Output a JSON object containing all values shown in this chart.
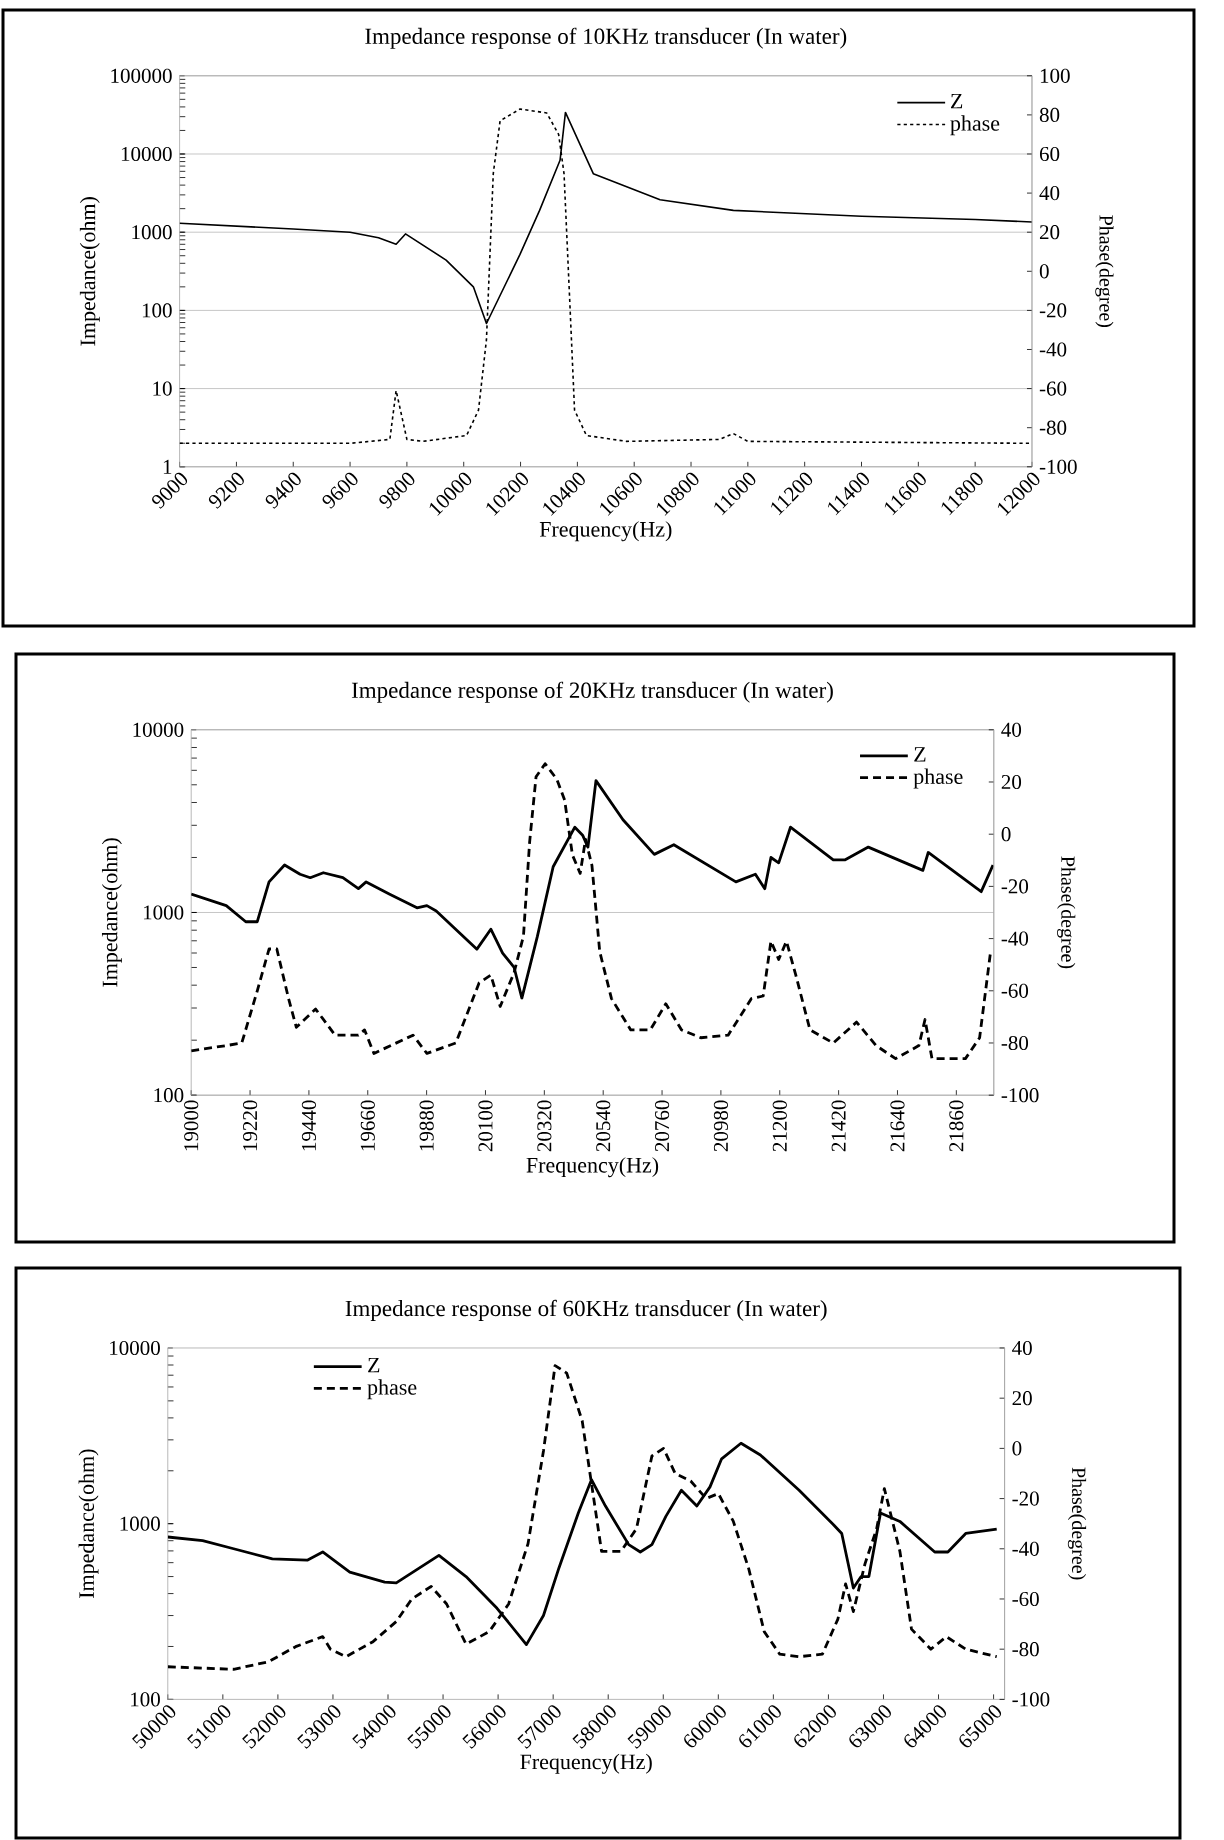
{
  "chart_data": [
    {
      "type": "line",
      "title": "Impedance response of 10KHz transducer (In water)",
      "xlabel": "Frequency(Hz)",
      "ylabel": "Impedance(ohm)",
      "y2label": "Phase(degree)",
      "xlim": [
        9000,
        12000
      ],
      "xticks": [
        9000,
        9200,
        9400,
        9600,
        9800,
        10000,
        10200,
        10400,
        10600,
        10800,
        11000,
        11200,
        11400,
        11600,
        11800,
        12000
      ],
      "ylim": [
        1,
        100000
      ],
      "yticks": [
        1,
        10,
        100,
        1000,
        10000,
        100000
      ],
      "log": "y",
      "y2lim": [
        -100,
        100
      ],
      "y2ticks": [
        -100,
        -80,
        -60,
        -40,
        -20,
        0,
        20,
        40,
        60,
        80,
        100
      ],
      "grid": "y",
      "legend": "top right",
      "series": [
        {
          "name": "Z",
          "color": "#000000",
          "line_style": "solid",
          "x": [
            9000,
            9400,
            9600,
            9700,
            9762,
            9795,
            9938,
            10034,
            10080,
            10198,
            10267,
            10339,
            10358,
            10456,
            10691,
            10949,
            11400,
            11800,
            12000
          ],
          "values": [
            1300,
            1100,
            1000,
            850,
            700,
            950,
            440,
            200,
            68,
            520,
            1900,
            8300,
            34000,
            5600,
            2600,
            1900,
            1600,
            1450,
            1350
          ]
        },
        {
          "name": "phase",
          "color": "#000000",
          "line_style": "dotted",
          "axis": "y2",
          "x": [
            9000,
            9600,
            9740,
            9762,
            9800,
            9856,
            10010,
            10052,
            10080,
            10104,
            10128,
            10198,
            10292,
            10334,
            10353,
            10374,
            10390,
            10432,
            10573,
            10900,
            10949,
            11000,
            12000
          ],
          "values": [
            -88,
            -88,
            -86,
            -61,
            -86,
            -87,
            -84,
            -71,
            -35,
            50,
            77,
            83,
            81,
            70,
            50,
            -18,
            -71,
            -84,
            -87,
            -86,
            -83,
            -87,
            -88
          ]
        }
      ]
    },
    {
      "type": "line",
      "title": "Impedance response of 20KHz transducer (In water)",
      "xlabel": "Frequency(Hz)",
      "ylabel": "Impedance(ohm)",
      "y2label": "Phase(degree)",
      "xlim": [
        19000,
        22000
      ],
      "xticks": [
        19000,
        19220,
        19440,
        19660,
        19880,
        20100,
        20320,
        20540,
        20760,
        20980,
        21200,
        21420,
        21640,
        21860
      ],
      "ylim": [
        100,
        10000
      ],
      "yticks": [
        100,
        1000,
        10000
      ],
      "log": "y",
      "y2lim": [
        -100,
        40
      ],
      "y2ticks": [
        -100,
        -80,
        -60,
        -40,
        -20,
        0,
        20,
        40
      ],
      "grid": "y",
      "legend": "top right",
      "series": [
        {
          "name": "Z",
          "color": "#000000",
          "line_style": "solid",
          "x": [
            19000,
            19131,
            19204,
            19247,
            19291,
            19349,
            19407,
            19445,
            19494,
            19567,
            19625,
            19654,
            19742,
            19844,
            19881,
            19916,
            20068,
            20120,
            20164,
            20207,
            20236,
            20294,
            20353,
            20434,
            20463,
            20483,
            20513,
            20614,
            20731,
            20804,
            21036,
            21109,
            21144,
            21167,
            21196,
            21240,
            21400,
            21443,
            21531,
            21735,
            21755,
            21953,
            21997
          ],
          "values": [
            1260,
            1090,
            890,
            890,
            1470,
            1820,
            1620,
            1550,
            1650,
            1550,
            1350,
            1470,
            1260,
            1060,
            1090,
            1020,
            630,
            810,
            600,
            500,
            340,
            740,
            1780,
            2930,
            2650,
            2280,
            5270,
            3220,
            2080,
            2350,
            1470,
            1620,
            1350,
            2000,
            1870,
            2930,
            1940,
            1940,
            2280,
            1700,
            2130,
            1300,
            1820
          ]
        },
        {
          "name": "phase",
          "color": "#000000",
          "line_style": "dashed",
          "axis": "y2",
          "x": [
            19000,
            19131,
            19189,
            19247,
            19291,
            19320,
            19364,
            19393,
            19465,
            19538,
            19625,
            19648,
            19683,
            19829,
            19881,
            19989,
            20076,
            20120,
            20155,
            20207,
            20242,
            20265,
            20289,
            20323,
            20367,
            20396,
            20425,
            20454,
            20474,
            20498,
            20527,
            20571,
            20643,
            20716,
            20774,
            20833,
            20905,
            21007,
            21094,
            21138,
            21167,
            21196,
            21225,
            21260,
            21313,
            21400,
            21487,
            21560,
            21633,
            21720,
            21743,
            21769,
            21894,
            21947,
            21988
          ],
          "values": [
            -83,
            -81,
            -80,
            -60,
            -44,
            -44,
            -63,
            -74,
            -67,
            -77,
            -77,
            -75,
            -84,
            -77,
            -84,
            -80,
            -57,
            -54,
            -66,
            -53,
            -39,
            -3,
            22,
            27,
            21,
            13,
            -8,
            -15,
            -2,
            -12,
            -45,
            -63,
            -75,
            -75,
            -65,
            -75,
            -78,
            -77,
            -63,
            -62,
            -41,
            -48,
            -41,
            -54,
            -75,
            -80,
            -72,
            -81,
            -86,
            -81,
            -71,
            -86,
            -86,
            -78,
            -45
          ]
        }
      ]
    },
    {
      "type": "line",
      "title": "Impedance response of 60KHz transducer (In water)",
      "xlabel": "Frequency(Hz)",
      "ylabel": "Impedance(ohm)",
      "y2label": "Phase(degree)",
      "xlim": [
        50000,
        65200
      ],
      "xticks": [
        50000,
        51000,
        52000,
        53000,
        54000,
        55000,
        56000,
        57000,
        58000,
        59000,
        60000,
        61000,
        62000,
        63000,
        64000,
        65000
      ],
      "ylim": [
        100,
        10000
      ],
      "yticks": [
        100,
        1000,
        10000
      ],
      "log": "y",
      "y2lim": [
        -100,
        40
      ],
      "y2ticks": [
        -100,
        -80,
        -60,
        -40,
        -20,
        0,
        20,
        40
      ],
      "legend": "top left",
      "series": [
        {
          "name": "Z",
          "color": "#000000",
          "line_style": "solid",
          "x": [
            50000,
            50633,
            51196,
            51899,
            52533,
            52814,
            53306,
            53940,
            54150,
            54925,
            55417,
            55980,
            56514,
            56824,
            57105,
            57457,
            57696,
            57950,
            58372,
            58583,
            58794,
            59047,
            59329,
            59610,
            59849,
            60060,
            60412,
            60764,
            61468,
            62101,
            62242,
            62453,
            62594,
            62735,
            62946,
            63298,
            63931,
            64170,
            64494,
            65057
          ],
          "values": [
            840,
            800,
            720,
            630,
            620,
            690,
            530,
            465,
            460,
            660,
            500,
            330,
            205,
            300,
            560,
            1150,
            1780,
            1260,
            760,
            690,
            760,
            1100,
            1550,
            1260,
            1620,
            2340,
            2870,
            2460,
            1550,
            980,
            880,
            430,
            500,
            500,
            1150,
            1030,
            690,
            690,
            880,
            930
          ]
        },
        {
          "name": "phase",
          "color": "#000000",
          "line_style": "dashed",
          "axis": "y2",
          "x": [
            50000,
            51196,
            51829,
            52322,
            52814,
            52955,
            53236,
            53728,
            54150,
            54432,
            54784,
            55065,
            55417,
            55839,
            56191,
            56543,
            56824,
            57035,
            57246,
            57527,
            57879,
            58231,
            58513,
            58794,
            59005,
            59216,
            59498,
            59779,
            60000,
            60271,
            60553,
            60834,
            61116,
            61468,
            61890,
            62172,
            62312,
            62453,
            62664,
            62876,
            63016,
            63298,
            63509,
            63861,
            64142,
            64494,
            65057
          ],
          "values": [
            -87,
            -88,
            -85,
            -79,
            -75,
            -80,
            -83,
            -77,
            -69,
            -60,
            -55,
            -62,
            -78,
            -73,
            -62,
            -38,
            -1,
            33,
            30,
            11,
            -41,
            -41,
            -32,
            -3,
            0,
            -10,
            -13,
            -20,
            -18,
            -29,
            -48,
            -73,
            -82,
            -83,
            -82,
            -68,
            -54,
            -65,
            -46,
            -32,
            -16,
            -41,
            -72,
            -80,
            -75,
            -80,
            -83
          ]
        }
      ]
    }
  ]
}
